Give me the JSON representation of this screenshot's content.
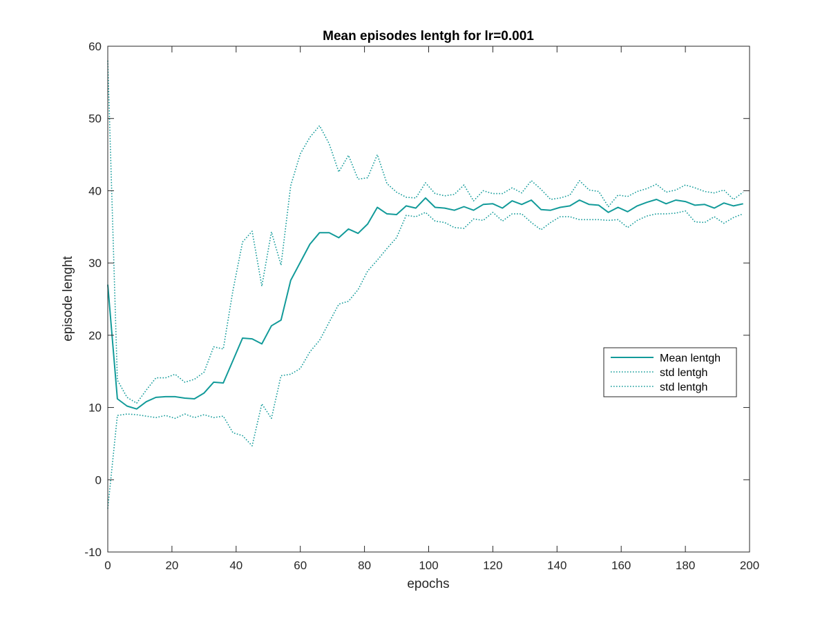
{
  "chart_data": {
    "type": "line",
    "title": "Mean episodes lentgh for lr=0.001",
    "xlabel": "epochs",
    "ylabel": "episode lenght",
    "xlim": [
      0,
      200
    ],
    "ylim": [
      -10,
      60
    ],
    "xticks": [
      0,
      20,
      40,
      60,
      80,
      100,
      120,
      140,
      160,
      180,
      200
    ],
    "yticks": [
      -10,
      0,
      10,
      20,
      30,
      40,
      50,
      60
    ],
    "grid": false,
    "legend_position": "right",
    "line_color": "#119A99",
    "x": [
      0,
      3,
      6,
      9,
      12,
      15,
      18,
      21,
      24,
      27,
      30,
      33,
      36,
      39,
      42,
      45,
      48,
      51,
      54,
      57,
      60,
      63,
      66,
      69,
      72,
      75,
      78,
      81,
      84,
      87,
      90,
      93,
      96,
      99,
      102,
      105,
      108,
      111,
      114,
      117,
      120,
      123,
      126,
      129,
      132,
      135,
      138,
      141,
      144,
      147,
      150,
      153,
      156,
      159,
      162,
      165,
      168,
      171,
      174,
      177,
      180,
      183,
      186,
      189,
      192,
      195,
      198
    ],
    "series": [
      {
        "name": "Mean lentgh",
        "style": "solid",
        "values": [
          27,
          11.2,
          10.2,
          9.8,
          10.8,
          11.4,
          11.5,
          11.5,
          11.3,
          11.2,
          12.0,
          13.5,
          13.4,
          16.5,
          19.6,
          19.5,
          18.8,
          21.3,
          22.1,
          27.6,
          30.1,
          32.6,
          34.2,
          34.2,
          33.5,
          34.7,
          34.1,
          35.4,
          37.7,
          36.8,
          36.7,
          37.9,
          37.6,
          39.0,
          37.7,
          37.6,
          37.3,
          37.8,
          37.3,
          38.1,
          38.2,
          37.6,
          38.6,
          38.1,
          38.7,
          37.4,
          37.3,
          37.7,
          37.9,
          38.7,
          38.1,
          38.0,
          37.0,
          37.7,
          37.1,
          37.9,
          38.4,
          38.8,
          38.2,
          38.7,
          38.5,
          38.0,
          38.1,
          37.6,
          38.3,
          37.9,
          38.2
        ]
      },
      {
        "name": "std lentgh",
        "style": "dotted",
        "values": [
          58,
          13.8,
          11.4,
          10.6,
          12.4,
          14.1,
          14.1,
          14.6,
          13.5,
          13.9,
          14.9,
          18.4,
          18.1,
          26.2,
          32.9,
          34.4,
          26.8,
          34.3,
          29.7,
          40.7,
          45.1,
          47.4,
          49.0,
          46.5,
          42.6,
          44.9,
          41.6,
          41.8,
          45.0,
          41.0,
          39.8,
          39.1,
          39.0,
          41.1,
          39.6,
          39.3,
          39.5,
          40.8,
          38.6,
          40.0,
          39.6,
          39.6,
          40.4,
          39.7,
          41.4,
          40.2,
          38.8,
          39.0,
          39.4,
          41.4,
          40.1,
          39.9,
          37.8,
          39.4,
          39.2,
          39.9,
          40.3,
          40.9,
          39.8,
          40.1,
          40.8,
          40.4,
          39.9,
          39.7,
          40.1,
          38.8,
          39.8
        ]
      },
      {
        "name": "std lentgh",
        "style": "dotted",
        "values": [
          -4,
          8.9,
          9.1,
          9.0,
          8.8,
          8.6,
          8.9,
          8.5,
          9.1,
          8.6,
          9.0,
          8.6,
          8.8,
          6.5,
          6.1,
          4.7,
          10.5,
          8.5,
          14.4,
          14.6,
          15.4,
          17.7,
          19.3,
          21.8,
          24.3,
          24.7,
          26.3,
          28.9,
          30.4,
          32.0,
          33.5,
          36.6,
          36.4,
          37.0,
          35.8,
          35.6,
          34.9,
          34.8,
          36.1,
          35.9,
          37.0,
          35.8,
          36.8,
          36.8,
          35.6,
          34.6,
          35.6,
          36.4,
          36.4,
          36.0,
          36.0,
          36.0,
          35.9,
          36.0,
          34.9,
          35.9,
          36.5,
          36.8,
          36.8,
          36.9,
          37.2,
          35.7,
          35.6,
          36.4,
          35.5,
          36.3,
          36.8
        ]
      }
    ]
  }
}
